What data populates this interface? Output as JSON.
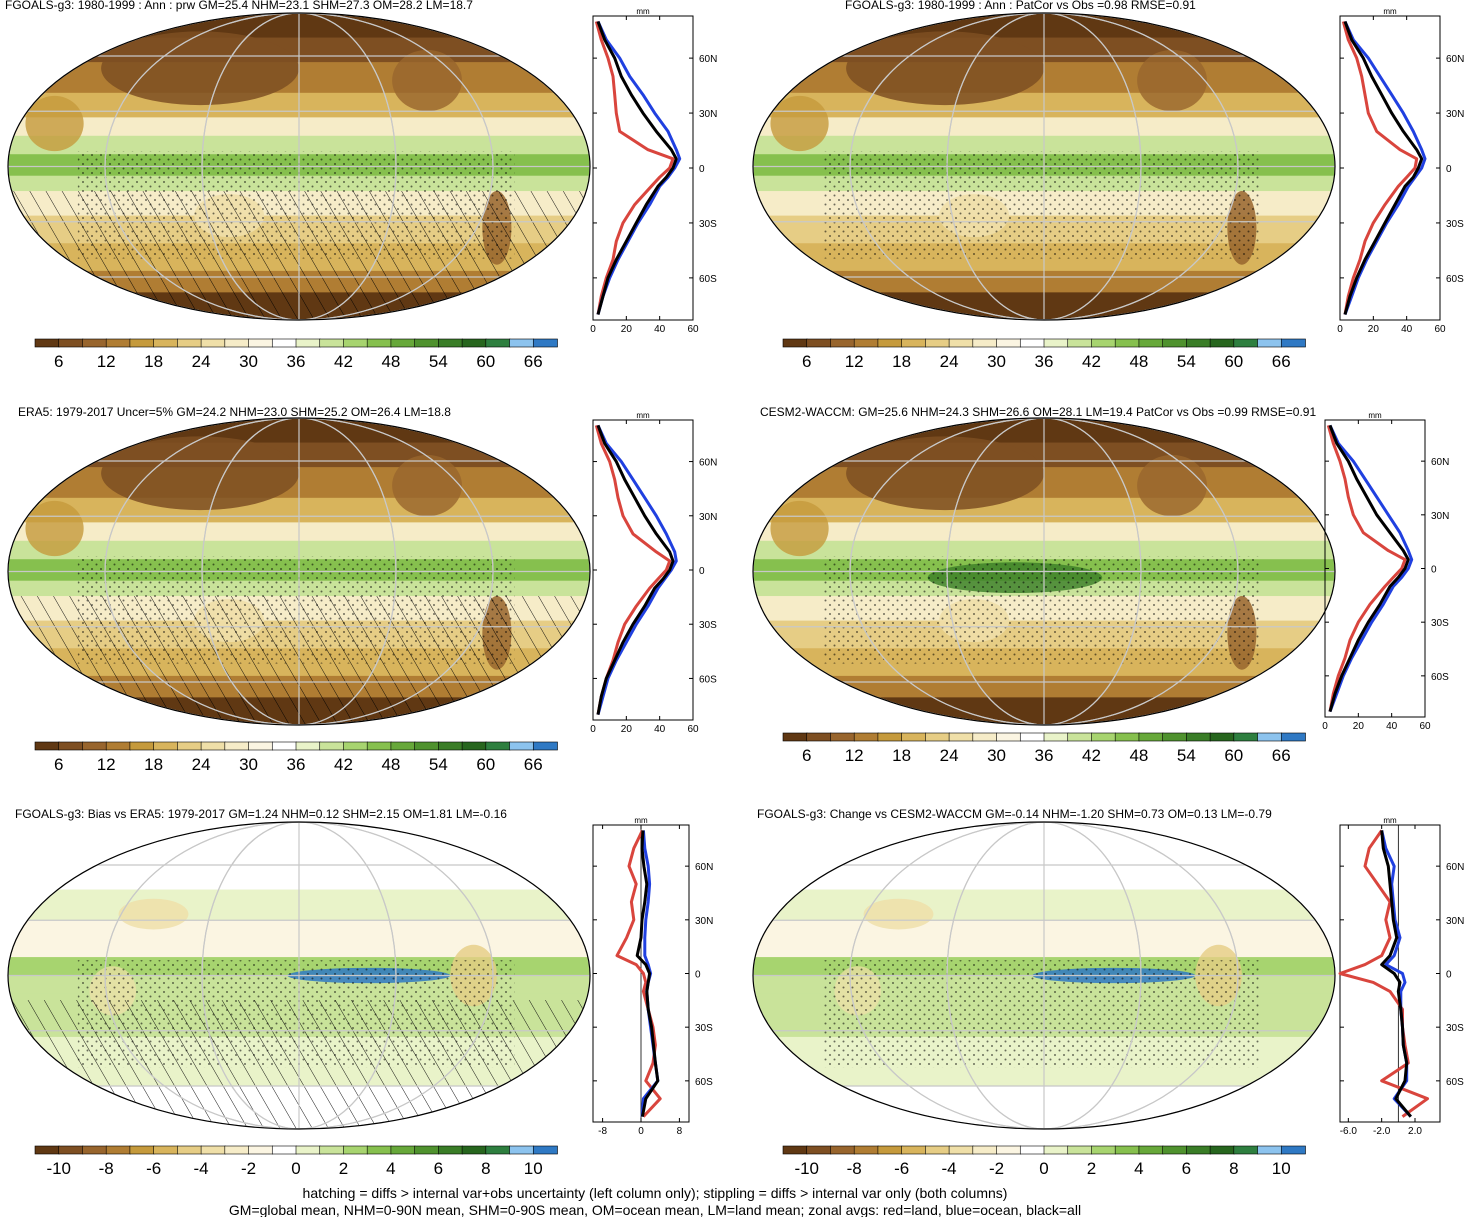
{
  "colors": {
    "levels": [
      "#603813",
      "#7e4f22",
      "#98652d",
      "#b07d33",
      "#c59a3c",
      "#d8b45c",
      "#e6cd85",
      "#efdfa8",
      "#f6ecc8",
      "#fbf5e2",
      "#ffffff",
      "#e9f3c9",
      "#c9e39a",
      "#a7d46f",
      "#86c04e",
      "#67a83a",
      "#4f922e",
      "#3a7d27",
      "#27661e",
      "#2e7f3f",
      "#8cc3ee",
      "#2f79c4"
    ],
    "land": "#d9453d",
    "ocean": "#2040e0",
    "all": "#000000",
    "grid": "#c8c8c8"
  },
  "panels": [
    {
      "title": "FGOALS-g3: 1980-1999 : Ann : prw GM=25.4 NHM=23.1 SHM=27.3 OM=28.2 LM=18.7",
      "colorbar_labels": [
        "6",
        "12",
        "18",
        "24",
        "30",
        "36",
        "42",
        "48",
        "54",
        "60",
        "66"
      ],
      "hatching": true,
      "stipple": true
    },
    {
      "title": "FGOALS-g3: 1980-1999 : Ann : PatCor vs Obs =0.98 RMSE=0.91",
      "colorbar_labels": [
        "6",
        "12",
        "18",
        "24",
        "30",
        "36",
        "42",
        "48",
        "54",
        "60",
        "66"
      ],
      "hatching": false,
      "stipple": true
    },
    {
      "title": "ERA5: 1979-2017 Uncer=5% GM=24.2 NHM=23.0 SHM=25.2 OM=26.4 LM=18.8",
      "colorbar_labels": [
        "6",
        "12",
        "18",
        "24",
        "30",
        "36",
        "42",
        "48",
        "54",
        "60",
        "66"
      ],
      "hatching": true,
      "stipple": true
    },
    {
      "title": "CESM2-WACCM: GM=25.6 NHM=24.3 SHM=26.6 OM=28.1 LM=19.4 PatCor vs Obs =0.99 RMSE=0.91",
      "colorbar_labels": [
        "6",
        "12",
        "18",
        "24",
        "30",
        "36",
        "42",
        "48",
        "54",
        "60",
        "66"
      ],
      "hatching": false,
      "stipple": true
    },
    {
      "title": "FGOALS-g3: Bias vs ERA5: 1979-2017 GM=1.24 NHM=0.12 SHM=2.15 OM=1.81 LM=-0.16",
      "colorbar_labels": [
        "-10",
        "-8",
        "-6",
        "-4",
        "-2",
        "0",
        "2",
        "4",
        "6",
        "8",
        "10"
      ],
      "hatching": true,
      "stipple": true
    },
    {
      "title": "FGOALS-g3: Change vs CESM2-WACCM GM=-0.14 NHM=-1.20 SHM=0.73 OM=0.13 LM=-0.79",
      "colorbar_labels": [
        "-10",
        "-8",
        "-6",
        "-4",
        "-2",
        "0",
        "2",
        "4",
        "6",
        "8",
        "10"
      ],
      "hatching": false,
      "stipple": true
    }
  ],
  "footer": {
    "line1": "hatching = diffs > internal var+obs uncertainty (left column only); stippling = diffs > internal var only (both columns)",
    "line2": "GM=global mean, NHM=0-90N mean, SHM=0-90S mean, OM=ocean mean, LM=land mean; zonal avgs: red=land, blue=ocean, black=all"
  },
  "chart_data": [
    {
      "type": "line",
      "title": "",
      "xlabel": "mm",
      "x_ticks": [
        "0",
        "20",
        "40",
        "60"
      ],
      "xlim": [
        0,
        60
      ],
      "y_ticks": [
        "60N",
        "30N",
        "0",
        "30S",
        "60S"
      ],
      "ylim": [
        -83,
        83
      ],
      "y": [
        80,
        70,
        60,
        50,
        40,
        30,
        20,
        10,
        5,
        0,
        -5,
        -10,
        -20,
        -30,
        -40,
        -50,
        -60,
        -70,
        -80
      ],
      "series": [
        {
          "role": "land",
          "values": [
            2,
            5,
            9,
            12,
            13,
            14,
            16,
            33,
            48,
            46,
            40,
            35,
            25,
            18,
            14,
            12,
            8,
            5,
            3
          ]
        },
        {
          "role": "ocean",
          "values": [
            3,
            8,
            16,
            22,
            30,
            37,
            45,
            50,
            52,
            49,
            45,
            40,
            34,
            27,
            21,
            15,
            10,
            6,
            3
          ]
        },
        {
          "role": "all",
          "values": [
            3,
            7,
            13,
            17,
            23,
            30,
            38,
            47,
            50,
            48,
            44,
            39,
            32,
            26,
            20,
            14,
            9,
            6,
            3
          ]
        }
      ]
    },
    {
      "type": "line",
      "title": "",
      "xlabel": "mm",
      "x_ticks": [
        "0",
        "20",
        "40",
        "60"
      ],
      "xlim": [
        0,
        60
      ],
      "y_ticks": [
        "60N",
        "30N",
        "0",
        "30S",
        "60S"
      ],
      "ylim": [
        -83,
        83
      ],
      "y": [
        80,
        70,
        60,
        50,
        40,
        30,
        20,
        10,
        5,
        0,
        -5,
        -10,
        -20,
        -30,
        -40,
        -50,
        -60,
        -70,
        -80
      ],
      "series": [
        {
          "role": "land",
          "values": [
            2,
            5,
            10,
            13,
            15,
            17,
            22,
            36,
            46,
            45,
            40,
            35,
            27,
            20,
            15,
            12,
            8,
            5,
            3
          ]
        },
        {
          "role": "ocean",
          "values": [
            3,
            8,
            17,
            24,
            31,
            38,
            44,
            49,
            51,
            49,
            45,
            41,
            35,
            28,
            22,
            16,
            11,
            7,
            3
          ]
        },
        {
          "role": "all",
          "values": [
            3,
            7,
            14,
            19,
            25,
            31,
            38,
            46,
            49,
            47,
            44,
            39,
            33,
            27,
            21,
            15,
            10,
            6,
            3
          ]
        }
      ]
    },
    {
      "type": "line",
      "title": "",
      "xlabel": "mm",
      "x_ticks": [
        "0",
        "20",
        "40",
        "60"
      ],
      "xlim": [
        0,
        60
      ],
      "y_ticks": [
        "60N",
        "30N",
        "0",
        "30S",
        "60S"
      ],
      "ylim": [
        -83,
        83
      ],
      "y": [
        80,
        70,
        60,
        50,
        40,
        30,
        20,
        10,
        5,
        0,
        -5,
        -10,
        -20,
        -30,
        -40,
        -50,
        -60,
        -70,
        -80
      ],
      "series": [
        {
          "role": "land",
          "values": [
            2,
            5,
            10,
            13,
            15,
            18,
            24,
            38,
            46,
            44,
            39,
            34,
            26,
            19,
            15,
            12,
            8,
            5,
            3
          ]
        },
        {
          "role": "ocean",
          "values": [
            3,
            8,
            17,
            24,
            31,
            38,
            44,
            49,
            50,
            47,
            43,
            39,
            33,
            26,
            20,
            14,
            9,
            6,
            3
          ]
        },
        {
          "role": "all",
          "values": [
            3,
            7,
            14,
            19,
            25,
            31,
            38,
            46,
            48,
            46,
            42,
            37,
            31,
            24,
            18,
            13,
            8,
            5,
            3
          ]
        }
      ]
    },
    {
      "type": "line",
      "title": "",
      "xlabel": "mm",
      "x_ticks": [
        "0",
        "20",
        "40",
        "60"
      ],
      "xlim": [
        0,
        60
      ],
      "y_ticks": [
        "60N",
        "30N",
        "0",
        "30S",
        "60S"
      ],
      "ylim": [
        -83,
        83
      ],
      "y": [
        80,
        70,
        60,
        50,
        40,
        30,
        20,
        10,
        5,
        0,
        -5,
        -10,
        -20,
        -30,
        -40,
        -50,
        -60,
        -70,
        -80
      ],
      "series": [
        {
          "role": "land",
          "values": [
            2,
            5,
            9,
            12,
            14,
            17,
            23,
            38,
            48,
            46,
            41,
            36,
            27,
            20,
            15,
            12,
            8,
            5,
            3
          ]
        },
        {
          "role": "ocean",
          "values": [
            3,
            8,
            17,
            24,
            31,
            38,
            45,
            50,
            52,
            50,
            46,
            41,
            35,
            28,
            22,
            16,
            11,
            7,
            3
          ]
        },
        {
          "role": "all",
          "values": [
            3,
            7,
            14,
            19,
            25,
            31,
            39,
            47,
            50,
            48,
            44,
            39,
            33,
            26,
            20,
            15,
            10,
            6,
            3
          ]
        }
      ]
    },
    {
      "type": "line",
      "title": "",
      "xlabel": "mm",
      "x_ticks": [
        "-8",
        "0",
        "8"
      ],
      "xlim": [
        -10,
        10
      ],
      "y_ticks": [
        "60N",
        "30N",
        "0",
        "30S",
        "60S"
      ],
      "ylim": [
        -83,
        83
      ],
      "y": [
        80,
        70,
        60,
        50,
        40,
        30,
        20,
        10,
        5,
        0,
        -5,
        -10,
        -20,
        -30,
        -40,
        -50,
        -60,
        -70,
        -80
      ],
      "series": [
        {
          "role": "land",
          "values": [
            0.3,
            -1.5,
            -2.5,
            -1.0,
            -2.0,
            -1.5,
            -3.0,
            -5.0,
            -1.0,
            0.5,
            1.0,
            0.5,
            1.5,
            2.5,
            3.0,
            2.5,
            1.0,
            4.0,
            0.5
          ]
        },
        {
          "role": "ocean",
          "values": [
            0.5,
            0.8,
            1.5,
            1.8,
            1.5,
            1.0,
            0.8,
            0.8,
            1.5,
            2.0,
            1.5,
            1.2,
            1.5,
            2.0,
            2.5,
            3.0,
            3.5,
            0.5,
            0.2
          ]
        },
        {
          "role": "all",
          "values": [
            0.4,
            0.2,
            0.6,
            1.2,
            0.8,
            0.2,
            0.0,
            -0.8,
            1.0,
            1.8,
            1.5,
            1.2,
            1.5,
            2.2,
            2.6,
            3.0,
            3.5,
            1.0,
            0.3
          ]
        }
      ]
    },
    {
      "type": "line",
      "title": "",
      "xlabel": "mm",
      "x_ticks": [
        "-6.0",
        "-2.0",
        "2.0"
      ],
      "xlim": [
        -7,
        5
      ],
      "y_ticks": [
        "60N",
        "30N",
        "0",
        "30S",
        "60S"
      ],
      "ylim": [
        -83,
        83
      ],
      "y": [
        80,
        70,
        60,
        50,
        40,
        30,
        20,
        10,
        5,
        0,
        -5,
        -10,
        -20,
        -30,
        -40,
        -50,
        -60,
        -70,
        -80
      ],
      "series": [
        {
          "role": "land",
          "values": [
            -2.0,
            -3.5,
            -4.0,
            -2.5,
            -1.0,
            -1.5,
            -1.0,
            -2.0,
            -4.0,
            -7.0,
            -3.0,
            -1.0,
            0.5,
            0.5,
            0.8,
            1.2,
            -2.0,
            3.5,
            0.5
          ]
        },
        {
          "role": "ocean",
          "values": [
            -2.0,
            -1.5,
            -0.5,
            -0.8,
            -0.6,
            -0.4,
            0.2,
            -0.5,
            -1.5,
            0.5,
            0.8,
            0.3,
            0.3,
            0.5,
            0.6,
            1.0,
            1.0,
            -0.5,
            1.5
          ]
        },
        {
          "role": "all",
          "values": [
            -2.0,
            -1.8,
            -1.2,
            -1.0,
            -0.8,
            -0.6,
            -0.2,
            -1.0,
            -2.0,
            -0.5,
            0.2,
            0.0,
            0.3,
            0.5,
            0.6,
            1.0,
            0.8,
            -0.3,
            1.5
          ]
        }
      ]
    }
  ]
}
